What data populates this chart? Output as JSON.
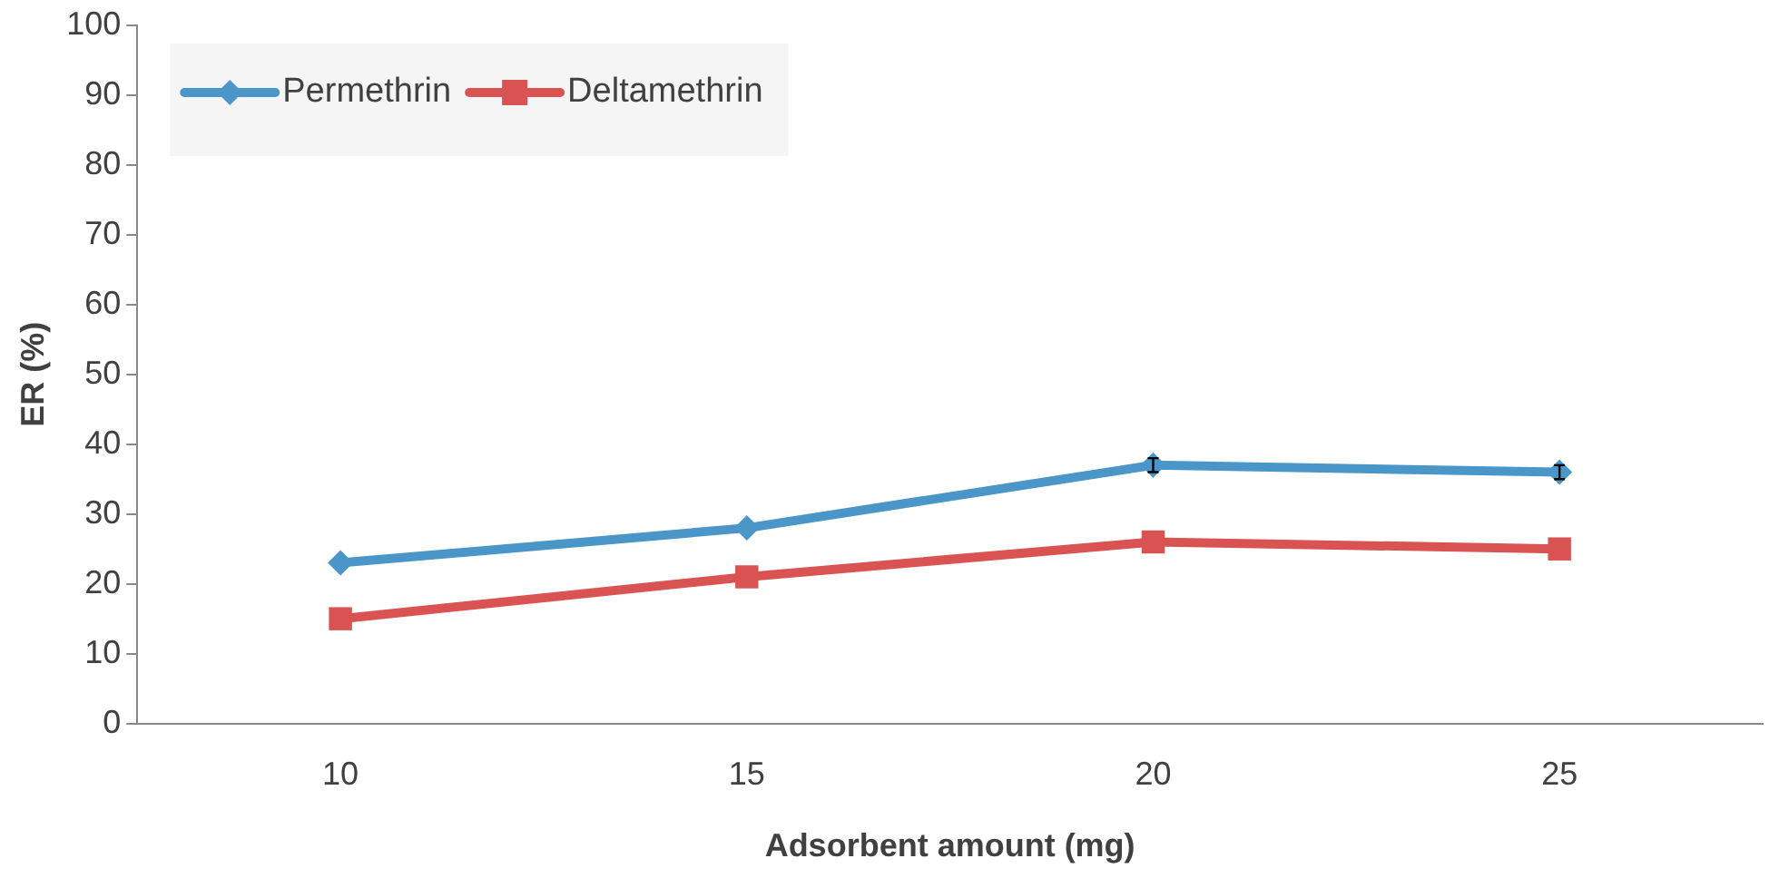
{
  "chart_data": {
    "type": "line",
    "xlabel": "Adsorbent amount (mg)",
    "ylabel": "ER (%)",
    "categories": [
      "10",
      "15",
      "20",
      "25"
    ],
    "series": [
      {
        "name": "Permethrin",
        "color": "#4a96c8",
        "marker": "diamond",
        "values": [
          23,
          28,
          37,
          36
        ],
        "errors": [
          null,
          null,
          1,
          1
        ]
      },
      {
        "name": "Deltamethrin",
        "color": "#d95352",
        "marker": "square",
        "values": [
          15,
          21,
          26,
          25
        ]
      }
    ],
    "ylim": [
      0,
      100
    ],
    "yticks": [
      0,
      10,
      20,
      30,
      40,
      50,
      60,
      70,
      80,
      90,
      100
    ],
    "grid": false,
    "legend": "top left"
  }
}
